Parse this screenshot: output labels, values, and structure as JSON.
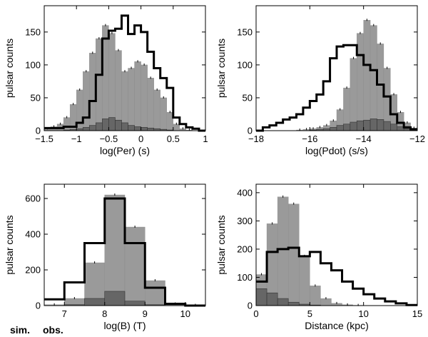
{
  "colors": {
    "sim": "#9a9a9a",
    "sim_label": "#a0a0a0",
    "obs_dark": "#666666",
    "obs_line": "#000000",
    "axes": "#000000"
  },
  "legend": {
    "sim": "sim.",
    "obs": "obs."
  },
  "chart_data": [
    {
      "id": "period",
      "type": "bar",
      "xlabel": "log(Per) (s)",
      "ylabel": "pulsar counts",
      "xlim": [
        -1.5,
        1
      ],
      "ylim": [
        0,
        190
      ],
      "xticks": [
        -1.5,
        -1,
        -0.5,
        0,
        0.5,
        1
      ],
      "xtick_labels": [
        "−1.5",
        "−1",
        "−0.5",
        "0",
        "0.5",
        "1"
      ],
      "yticks": [
        0,
        50,
        100,
        150
      ],
      "ytick_labels": [
        "0",
        "50",
        "100",
        "150"
      ],
      "bin_edges": [
        -1.5,
        -1.4,
        -1.3,
        -1.2,
        -1.1,
        -1.0,
        -0.9,
        -0.8,
        -0.7,
        -0.6,
        -0.5,
        -0.4,
        -0.3,
        -0.2,
        -0.1,
        0.0,
        0.1,
        0.2,
        0.3,
        0.4,
        0.5,
        0.6,
        0.7,
        0.8,
        0.9,
        1.0
      ],
      "sim_counts": [
        3,
        6,
        10,
        20,
        40,
        62,
        90,
        118,
        140,
        160,
        148,
        122,
        90,
        95,
        105,
        100,
        80,
        62,
        50,
        28,
        10,
        3,
        1,
        0,
        0
      ],
      "obs_dark_counts": [
        0,
        0,
        0,
        1,
        2,
        3,
        5,
        8,
        12,
        18,
        20,
        16,
        12,
        8,
        6,
        5,
        4,
        3,
        2,
        1,
        0,
        0,
        0,
        0,
        0
      ],
      "obs_line_counts": [
        4,
        4,
        4,
        6,
        6,
        12,
        20,
        45,
        85,
        140,
        152,
        155,
        175,
        147,
        160,
        150,
        120,
        95,
        80,
        65,
        20,
        10,
        5,
        3,
        0
      ]
    },
    {
      "id": "pdot",
      "type": "bar",
      "xlabel": "log(Pdot) (s/s)",
      "ylabel": "pulsar counts",
      "xlim": [
        -18,
        -12
      ],
      "ylim": [
        0,
        190
      ],
      "xticks": [
        -18,
        -16,
        -14,
        -12
      ],
      "xtick_labels": [
        "−18",
        "−16",
        "−14",
        "−12"
      ],
      "yticks": [
        0,
        50,
        100,
        150
      ],
      "ytick_labels": [
        "0",
        "50",
        "100",
        "150"
      ],
      "bin_edges": [
        -18.0,
        -17.75,
        -17.5,
        -17.25,
        -17.0,
        -16.75,
        -16.5,
        -16.25,
        -16.0,
        -15.75,
        -15.5,
        -15.25,
        -15.0,
        -14.75,
        -14.5,
        -14.25,
        -14.0,
        -13.75,
        -13.5,
        -13.25,
        -13.0,
        -12.75,
        -12.5,
        -12.25,
        -12.0
      ],
      "sim_counts": [
        0,
        0,
        0,
        0,
        0,
        0,
        1,
        2,
        3,
        5,
        8,
        15,
        32,
        65,
        110,
        148,
        168,
        160,
        132,
        95,
        55,
        28,
        12,
        4
      ],
      "obs_dark_counts": [
        0,
        0,
        0,
        0,
        0,
        0,
        0,
        0,
        1,
        2,
        3,
        5,
        8,
        10,
        13,
        15,
        16,
        18,
        17,
        14,
        10,
        6,
        3,
        1
      ],
      "obs_line_counts": [
        0,
        5,
        8,
        12,
        17,
        20,
        25,
        35,
        45,
        55,
        75,
        110,
        128,
        130,
        130,
        115,
        100,
        92,
        70,
        52,
        25,
        12,
        5,
        2
      ]
    },
    {
      "id": "bfield",
      "type": "bar",
      "xlabel": "log(B) (T)",
      "ylabel": "pulsar counts",
      "xlim": [
        6.5,
        10.5
      ],
      "ylim": [
        0,
        680
      ],
      "xticks": [
        7,
        8,
        9,
        10
      ],
      "xtick_labels": [
        "7",
        "8",
        "9",
        "10"
      ],
      "yticks": [
        0,
        200,
        400,
        600
      ],
      "ytick_labels": [
        "0",
        "200",
        "400",
        "600"
      ],
      "bin_edges": [
        6.5,
        7.0,
        7.5,
        8.0,
        8.5,
        9.0,
        9.5,
        10.0,
        10.5
      ],
      "sim_counts": [
        5,
        40,
        240,
        620,
        440,
        140,
        10,
        2
      ],
      "obs_dark_counts": [
        0,
        5,
        40,
        80,
        25,
        5,
        0,
        0
      ],
      "obs_line_counts": [
        35,
        130,
        350,
        600,
        350,
        100,
        10,
        0
      ]
    },
    {
      "id": "distance",
      "type": "bar",
      "xlabel": "Distance (kpc)",
      "ylabel": "pulsar counts",
      "xlim": [
        0,
        15
      ],
      "ylim": [
        0,
        430
      ],
      "xticks": [
        0,
        5,
        10,
        15
      ],
      "xtick_labels": [
        "0",
        "5",
        "10",
        "15"
      ],
      "yticks": [
        0,
        100,
        200,
        300,
        400
      ],
      "ytick_labels": [
        "0",
        "100",
        "200",
        "300",
        "400"
      ],
      "bin_edges": [
        0,
        1,
        2,
        3,
        4,
        5,
        6,
        7,
        8,
        9,
        10,
        11,
        12,
        13,
        14,
        15
      ],
      "sim_counts": [
        110,
        290,
        385,
        360,
        175,
        70,
        25,
        8,
        3,
        1,
        0,
        0,
        0,
        0,
        0
      ],
      "obs_dark_counts": [
        60,
        45,
        25,
        12,
        5,
        2,
        0,
        0,
        0,
        0,
        0,
        0,
        0,
        0,
        0
      ],
      "obs_line_counts": [
        85,
        190,
        200,
        205,
        175,
        190,
        150,
        125,
        85,
        60,
        40,
        25,
        15,
        8,
        2
      ]
    }
  ]
}
